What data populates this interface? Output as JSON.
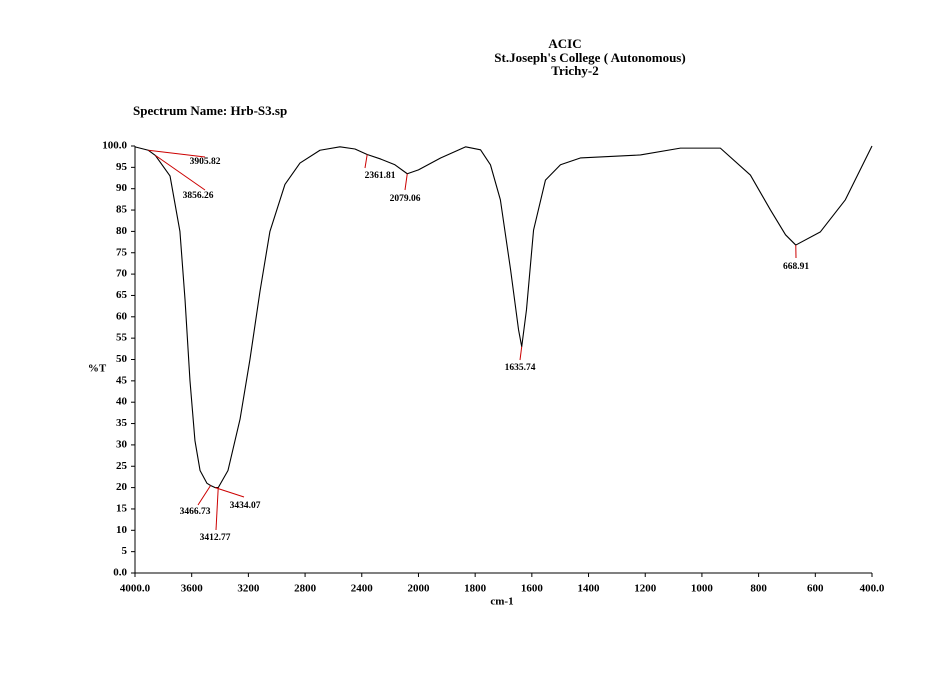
{
  "chart_data": {
    "type": "line",
    "title": [
      "ACIC",
      "St.Joseph's College ( Autonomous)",
      "Trichy-2"
    ],
    "subtitle": "Spectrum Name: Hrb-S3.sp",
    "x_label": "cm-1",
    "y_label": "%T",
    "xlim": [
      4000,
      400
    ],
    "ylim": [
      0,
      100
    ],
    "xticks": [
      {
        "value": 4000,
        "label": "4000.0"
      },
      3600,
      3200,
      2800,
      2400,
      2000,
      1800,
      1600,
      1400,
      1200,
      1000,
      800,
      600,
      {
        "value": 400,
        "label": "400.0"
      }
    ],
    "yticks": [
      {
        "value": 0,
        "label": "0.0"
      },
      5,
      10,
      15,
      20,
      25,
      30,
      35,
      40,
      45,
      50,
      55,
      60,
      65,
      70,
      75,
      80,
      85,
      90,
      95,
      {
        "value": 100,
        "label": "100.0"
      }
    ],
    "color": "#000000",
    "peak_color": "#cc0000",
    "x": [
      4000,
      3905.82,
      3856.26,
      3753,
      3683,
      3647,
      3612,
      3577,
      3541,
      3492,
      3466.73,
      3434.07,
      3412.77,
      3344,
      3259,
      3189,
      3118,
      3048,
      2942,
      2836,
      2695,
      2554,
      2448,
      2361.81,
      2271,
      2166,
      2079.06,
      2000,
      1922,
      1834,
      1781,
      1746,
      1711,
      1675,
      1647,
      1635.74,
      1619,
      1594,
      1552,
      1499,
      1429,
      1217,
      1076,
      935,
      829,
      758,
      705,
      668.91,
      582,
      494,
      400
    ],
    "y": [
      99.8,
      99.0,
      97.8,
      93.0,
      80.0,
      64.0,
      45.0,
      31.0,
      24.0,
      21.0,
      20.5,
      20.0,
      20.0,
      24.0,
      36.0,
      50.0,
      66.0,
      80.0,
      91.0,
      96.0,
      99.0,
      99.8,
      99.3,
      98.0,
      97.0,
      95.6,
      93.5,
      94.4,
      97.2,
      99.8,
      99.1,
      95.6,
      87.4,
      71.0,
      57.0,
      53.0,
      61.6,
      80.3,
      92.0,
      95.6,
      97.2,
      97.9,
      99.5,
      99.5,
      93.2,
      85.0,
      79.2,
      76.8,
      79.9,
      87.4,
      100.0
    ],
    "peaks": [
      3905.82,
      3856.26,
      3466.73,
      3434.07,
      3412.77,
      2361.81,
      2079.06,
      1635.74,
      668.91
    ]
  }
}
